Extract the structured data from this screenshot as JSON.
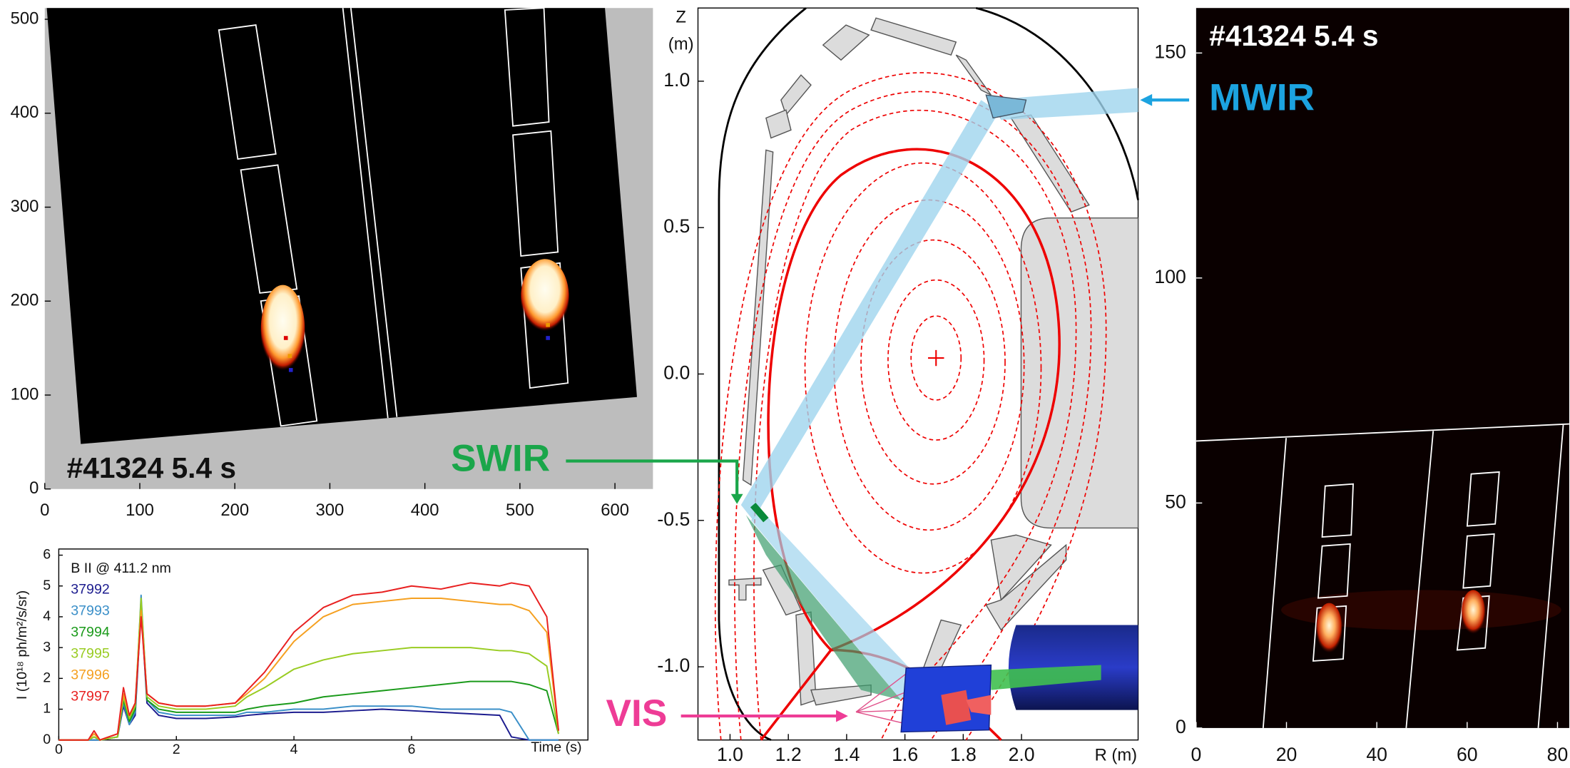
{
  "chart_data": [
    {
      "type": "image",
      "annotation": "#41324  5.4 s",
      "xlim": [
        0,
        640
      ],
      "ylim": [
        0,
        512
      ],
      "xticks": [
        0,
        100,
        200,
        300,
        400,
        500,
        600
      ],
      "yticks": [
        0,
        100,
        200,
        300,
        400,
        500
      ]
    },
    {
      "type": "line",
      "title": "B II @ 411.2 nm",
      "y_label": "I (10¹⁸ ph/m²/s/sr)",
      "x_label": "Time (s)",
      "x": [
        0,
        0.5,
        0.6,
        0.7,
        1.0,
        1.1,
        1.2,
        1.3,
        1.4,
        1.5,
        1.7,
        2,
        2.5,
        3,
        3.2,
        3.5,
        4,
        4.5,
        5,
        5.5,
        6,
        6.5,
        7,
        7.5,
        7.7,
        8,
        8.3,
        8.5
      ],
      "series": [
        {
          "name": "37992",
          "color": "#1c1c8f",
          "values": [
            0,
            0,
            0,
            0,
            0.1,
            1.1,
            0.5,
            0.8,
            4.3,
            1.2,
            0.8,
            0.7,
            0.7,
            0.75,
            0.8,
            0.85,
            0.9,
            0.9,
            0.95,
            1.0,
            0.95,
            0.9,
            0.85,
            0.8,
            0.1,
            0,
            0,
            0
          ]
        },
        {
          "name": "37993",
          "color": "#3a8fc8",
          "values": [
            0,
            0,
            0,
            0,
            0.1,
            1.2,
            0.5,
            0.9,
            4.7,
            1.3,
            0.9,
            0.8,
            0.8,
            0.8,
            0.9,
            0.9,
            1.0,
            1.0,
            1.1,
            1.1,
            1.1,
            1.0,
            1.0,
            1.0,
            0.9,
            0,
            0,
            0
          ]
        },
        {
          "name": "37994",
          "color": "#1a9a1a",
          "values": [
            0,
            0,
            0.1,
            0,
            0.1,
            1.3,
            0.6,
            1.0,
            4.5,
            1.3,
            1.0,
            0.9,
            0.9,
            0.9,
            1.0,
            1.1,
            1.2,
            1.4,
            1.5,
            1.6,
            1.7,
            1.8,
            1.9,
            1.9,
            1.9,
            1.8,
            1.6,
            0.2
          ]
        },
        {
          "name": "37995",
          "color": "#99cc22",
          "values": [
            0,
            0,
            0.1,
            0,
            0.1,
            1.4,
            0.7,
            1.1,
            4.6,
            1.4,
            1.1,
            1.0,
            1.0,
            1.1,
            1.4,
            1.7,
            2.3,
            2.6,
            2.8,
            2.9,
            3.0,
            3.0,
            3.0,
            2.9,
            2.9,
            2.8,
            2.4,
            0.2
          ]
        },
        {
          "name": "37996",
          "color": "#f5a020",
          "values": [
            0,
            0,
            0.2,
            0,
            0.2,
            1.5,
            0.8,
            1.2,
            4.2,
            1.5,
            1.2,
            1.1,
            1.1,
            1.2,
            1.5,
            2.0,
            3.2,
            4.0,
            4.4,
            4.5,
            4.6,
            4.6,
            4.5,
            4.4,
            4.4,
            4.2,
            3.5,
            0.3
          ]
        },
        {
          "name": "37997",
          "color": "#e82020",
          "values": [
            0,
            0,
            0.3,
            0,
            0.2,
            1.7,
            0.8,
            1.2,
            4.0,
            1.5,
            1.2,
            1.1,
            1.1,
            1.2,
            1.6,
            2.2,
            3.5,
            4.3,
            4.7,
            4.8,
            5.0,
            4.9,
            5.1,
            5.0,
            5.1,
            5.0,
            4.0,
            0.3
          ]
        }
      ],
      "xlim": [
        0,
        9
      ],
      "ylim": [
        0,
        6.2
      ],
      "xticks": [
        0,
        2,
        4,
        6
      ],
      "yticks": [
        0,
        1,
        2,
        3,
        4,
        5,
        6
      ]
    },
    {
      "type": "cross-section",
      "x_label": "R (m)",
      "y_label": "Z",
      "y_unit": "(m)",
      "annotations": [
        "SWIR",
        "VIS",
        "MWIR"
      ],
      "xlim": [
        0.89,
        2.4
      ],
      "ylim": [
        -1.25,
        1.25
      ],
      "xticks": [
        {
          "value": 1.0,
          "label": "1.0"
        },
        1.2,
        1.4,
        1.6,
        1.8,
        {
          "value": 2.0,
          "label": "2.0"
        }
      ],
      "yticks": [
        {
          "value": -1.0,
          "label": "-1.0"
        },
        -0.5,
        {
          "value": 0.0,
          "label": "0.0"
        },
        0.5,
        {
          "value": 1.0,
          "label": "1.0"
        }
      ]
    },
    {
      "type": "image",
      "annotation": "#41324  5.4 s",
      "xlim": [
        0,
        82.6
      ],
      "ylim": [
        0,
        160
      ],
      "xticks": [
        0,
        20,
        40,
        60,
        80
      ],
      "yticks": [
        0,
        50,
        100,
        150
      ]
    }
  ]
}
